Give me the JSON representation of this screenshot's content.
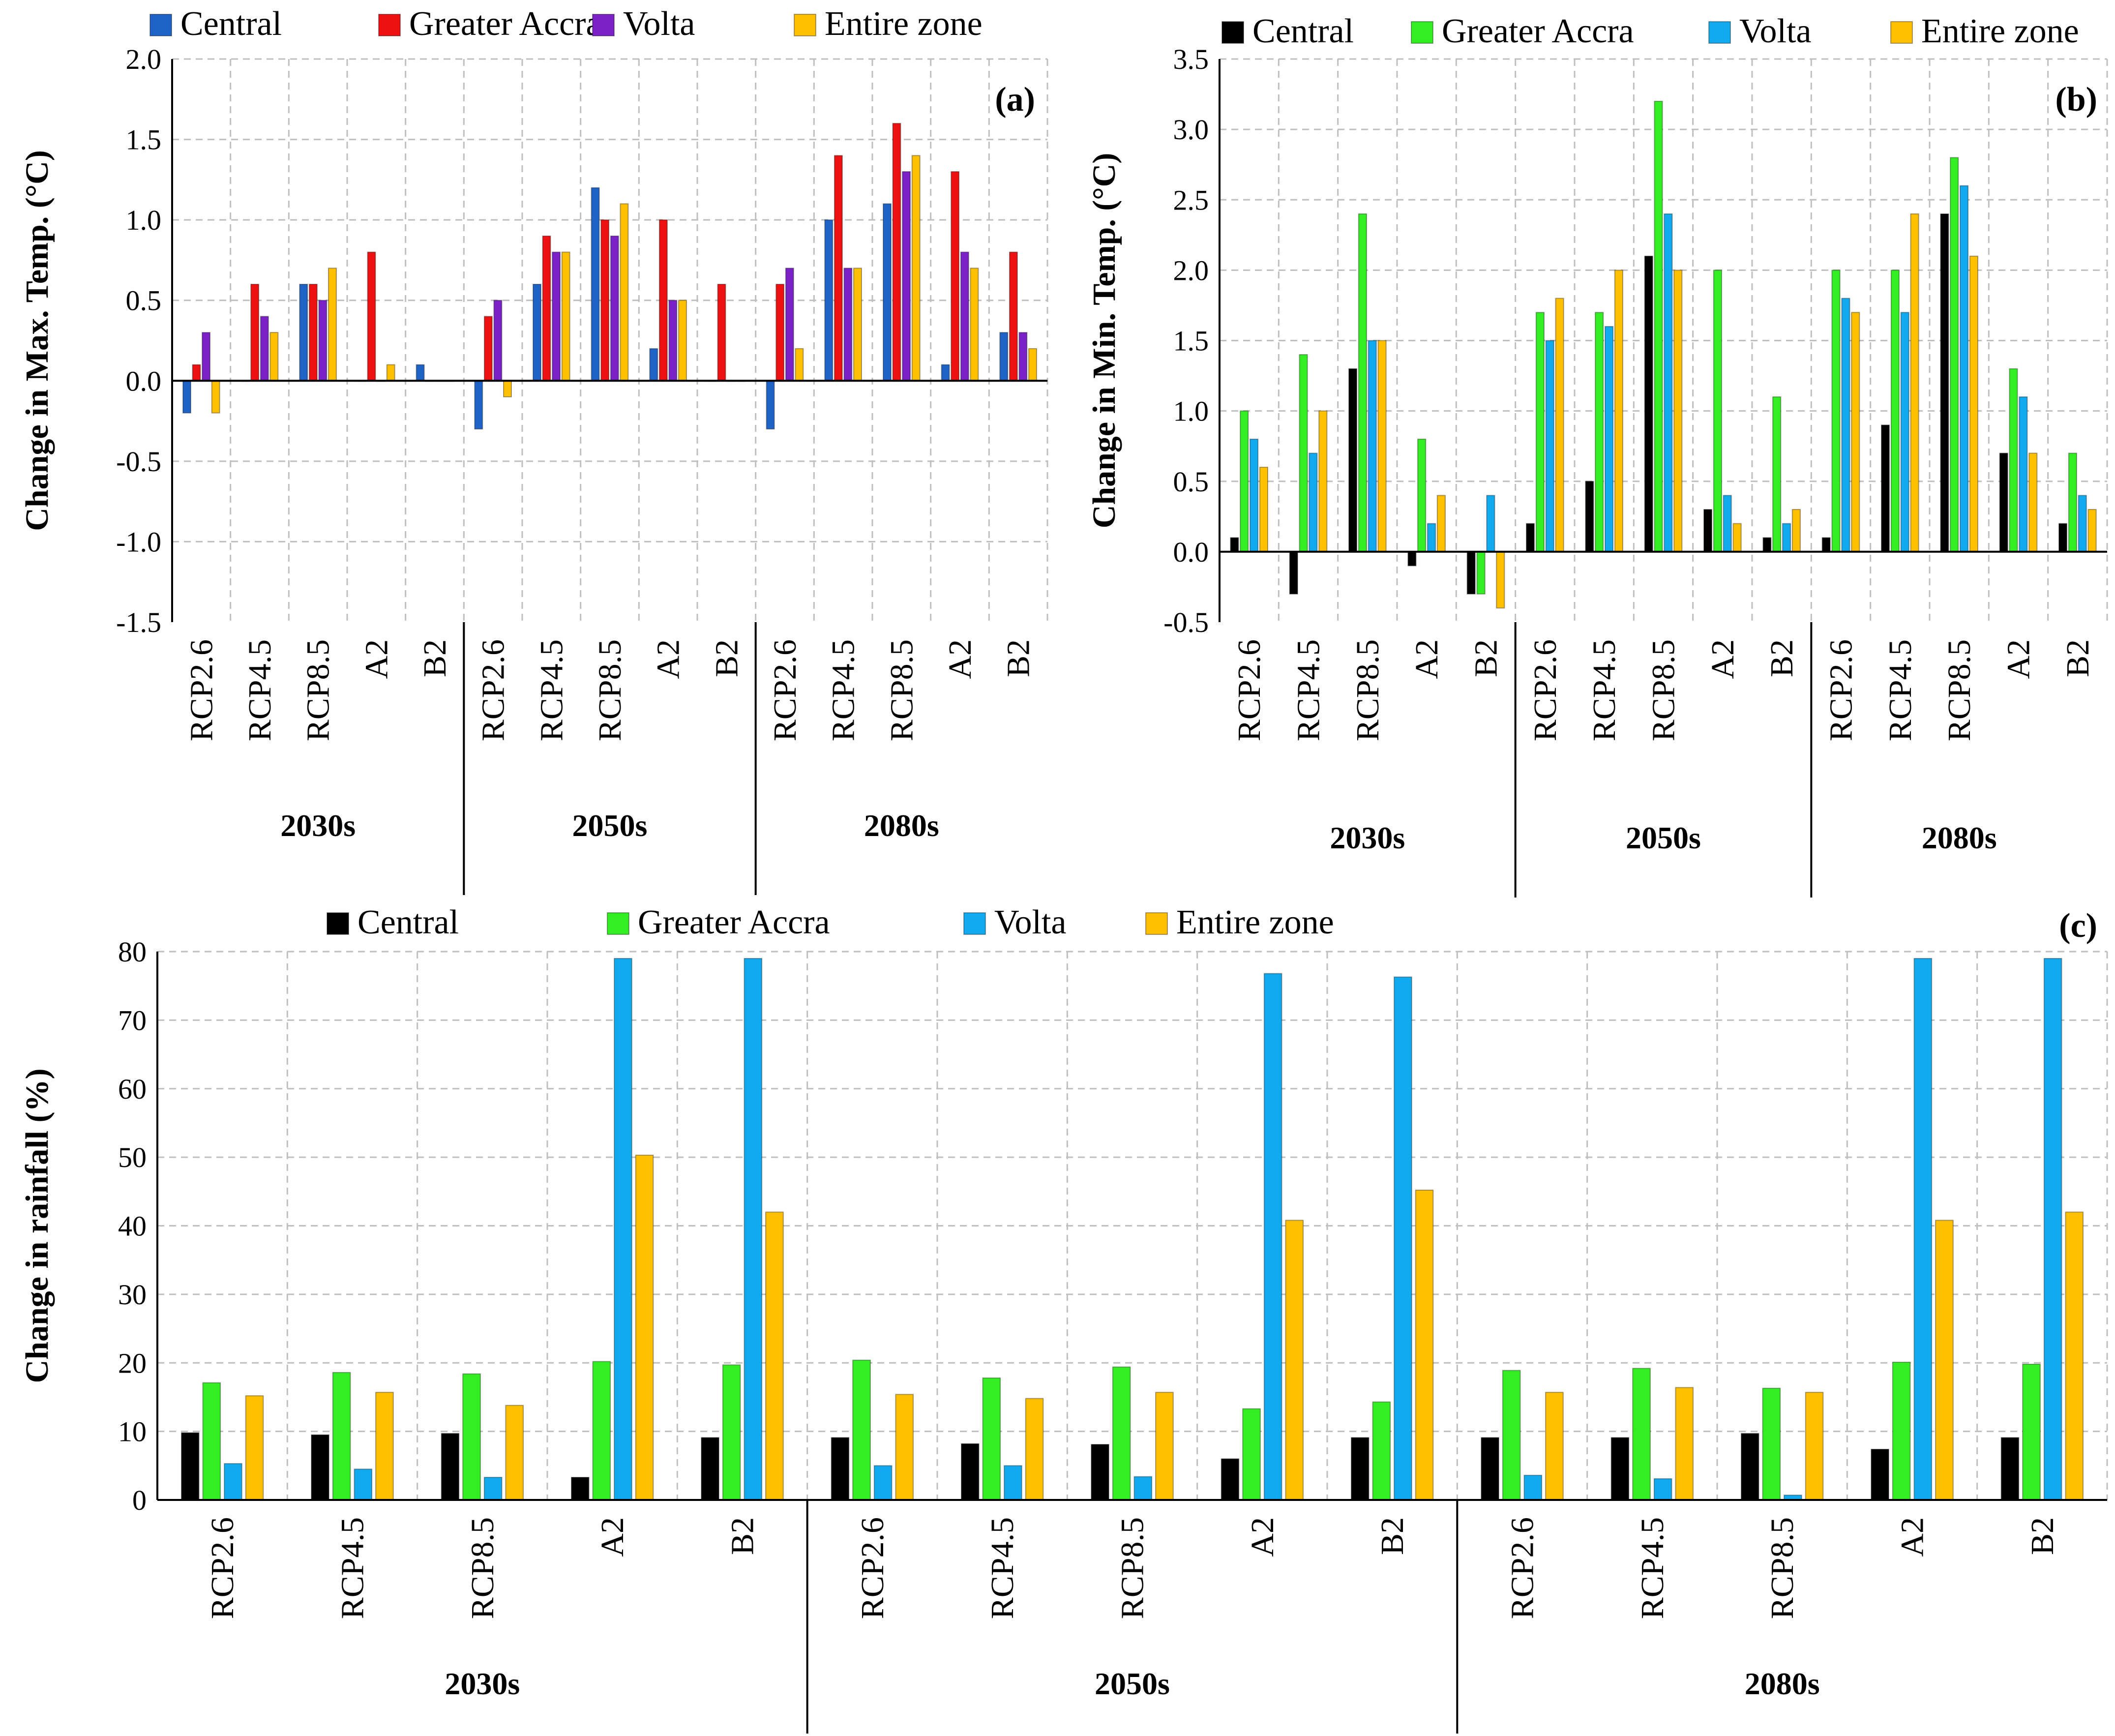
{
  "colors": {
    "Central": "#000000",
    "Greater Accra": "#33ee22",
    "Volta": "#11aaee",
    "Entire zone": "#ffc000"
  },
  "chart_data": [
    {
      "type": "bar",
      "panel": "(a)",
      "ylabel": "Change in Max. Temp. (°C)",
      "ylim": [
        -1.5,
        2.0
      ],
      "ytick_step": 0.5,
      "ytick_decimals": 1,
      "ytick_labels": [
        "-1.5",
        "-1.0",
        "-0.5",
        "0.0",
        "0.5",
        "1.0",
        "1.5",
        "2.0"
      ],
      "grid": true,
      "legend_position": "top",
      "groups": [
        "2030s",
        "2050s",
        "2080s"
      ],
      "scenarios": [
        "RCP2.6",
        "RCP4.5",
        "RCP8.5",
        "A2",
        "B2"
      ],
      "categories": [
        "RCP2.6",
        "RCP4.5",
        "RCP8.5",
        "A2",
        "B2",
        "RCP2.6",
        "RCP4.5",
        "RCP8.5",
        "A2",
        "B2",
        "RCP2.6",
        "RCP4.5",
        "RCP8.5",
        "A2",
        "B2"
      ],
      "series": [
        {
          "name": "Central",
          "color": "#1f63c6",
          "values": [
            -0.2,
            0.0,
            0.6,
            0.0,
            0.1,
            -0.3,
            0.6,
            1.2,
            0.2,
            0.0,
            -0.3,
            1.0,
            1.1,
            0.1,
            0.3
          ]
        },
        {
          "name": "Greater Accra",
          "color": "#ee1111",
          "values": [
            0.1,
            0.6,
            0.6,
            0.8,
            0.0,
            0.4,
            0.9,
            1.0,
            1.0,
            0.6,
            0.6,
            1.4,
            1.6,
            1.3,
            0.8
          ]
        },
        {
          "name": "Volta",
          "color": "#7a22c8",
          "values": [
            0.3,
            0.4,
            0.5,
            0.0,
            0.0,
            0.5,
            0.8,
            0.9,
            0.5,
            0.0,
            0.7,
            0.7,
            1.3,
            0.8,
            0.3
          ]
        },
        {
          "name": "Entire zone",
          "color": "#ffc000",
          "values": [
            -0.2,
            0.3,
            0.7,
            0.1,
            0.0,
            -0.1,
            0.8,
            1.1,
            0.5,
            0.0,
            0.2,
            0.7,
            1.4,
            0.7,
            0.2
          ]
        }
      ]
    },
    {
      "type": "bar",
      "panel": "(b)",
      "ylabel": "Change in Min. Temp.  (°C)",
      "ylim": [
        -0.5,
        3.5
      ],
      "ytick_step": 0.5,
      "ytick_decimals": 1,
      "ytick_labels": [
        "-0.5",
        "0.0",
        "0.5",
        "1.0",
        "1.5",
        "2.0",
        "2.5",
        "3.0",
        "3.5"
      ],
      "grid": true,
      "legend_position": "top",
      "groups": [
        "2030s",
        "2050s",
        "2080s"
      ],
      "scenarios": [
        "RCP2.6",
        "RCP4.5",
        "RCP8.5",
        "A2",
        "B2"
      ],
      "categories": [
        "RCP2.6",
        "RCP4.5",
        "RCP8.5",
        "A2",
        "B2",
        "RCP2.6",
        "RCP4.5",
        "RCP8.5",
        "A2",
        "B2",
        "RCP2.6",
        "RCP4.5",
        "RCP8.5",
        "A2",
        "B2"
      ],
      "series": [
        {
          "name": "Central",
          "color": "#000000",
          "values": [
            0.1,
            -0.3,
            1.3,
            -0.1,
            -0.3,
            0.2,
            0.5,
            2.1,
            0.3,
            0.1,
            0.1,
            0.9,
            2.4,
            0.7,
            0.2
          ]
        },
        {
          "name": "Greater Accra",
          "color": "#33ee22",
          "values": [
            1.0,
            1.4,
            2.4,
            0.8,
            -0.3,
            1.7,
            1.7,
            3.2,
            2.0,
            1.1,
            2.0,
            2.0,
            2.8,
            1.3,
            0.7
          ]
        },
        {
          "name": "Volta",
          "color": "#11aaee",
          "values": [
            0.8,
            0.7,
            1.5,
            0.2,
            0.4,
            1.5,
            1.6,
            2.4,
            0.4,
            0.2,
            1.8,
            1.7,
            2.6,
            1.1,
            0.4
          ]
        },
        {
          "name": "Entire zone",
          "color": "#ffc000",
          "values": [
            0.6,
            1.0,
            1.5,
            0.4,
            -0.4,
            1.8,
            2.0,
            2.0,
            0.2,
            0.3,
            1.7,
            2.4,
            2.1,
            0.7,
            0.3
          ]
        }
      ]
    },
    {
      "type": "bar",
      "panel": "(c)",
      "ylabel": "Change in rainfall  (%)",
      "ylim": [
        0,
        80
      ],
      "ytick_step": 10,
      "ytick_decimals": 0,
      "ytick_labels": [
        "0",
        "10",
        "20",
        "30",
        "40",
        "50",
        "60",
        "70",
        "80"
      ],
      "grid": true,
      "legend_position": "top",
      "groups": [
        "2030s",
        "2050s",
        "2080s"
      ],
      "scenarios": [
        "RCP2.6",
        "RCP4.5",
        "RCP8.5",
        "A2",
        "B2"
      ],
      "categories": [
        "RCP2.6",
        "RCP4.5",
        "RCP8.5",
        "A2",
        "B2",
        "RCP2.6",
        "RCP4.5",
        "RCP8.5",
        "A2",
        "B2",
        "RCP2.6",
        "RCP4.5",
        "RCP8.5",
        "A2",
        "B2"
      ],
      "series": [
        {
          "name": "Central",
          "color": "#000000",
          "values": [
            9.8,
            9.5,
            9.7,
            3.3,
            9.1,
            9.1,
            8.2,
            8.1,
            6.0,
            9.1,
            9.1,
            9.1,
            9.7,
            7.4,
            9.1
          ]
        },
        {
          "name": "Greater Accra",
          "color": "#33ee22",
          "values": [
            17.1,
            18.6,
            18.4,
            20.2,
            19.7,
            20.4,
            17.8,
            19.4,
            13.3,
            14.3,
            18.9,
            19.2,
            16.3,
            20.1,
            19.8
          ]
        },
        {
          "name": "Volta",
          "color": "#11aaee",
          "values": [
            5.3,
            4.5,
            3.3,
            79.0,
            79.0,
            5.0,
            5.0,
            3.4,
            76.8,
            76.3,
            3.6,
            3.1,
            0.7,
            79.0,
            79.0
          ]
        },
        {
          "name": "Entire zone",
          "color": "#ffc000",
          "values": [
            15.2,
            15.7,
            13.8,
            50.3,
            42.0,
            15.4,
            14.8,
            15.7,
            40.8,
            45.2,
            15.7,
            16.4,
            15.7,
            40.8,
            42.0
          ]
        }
      ]
    }
  ]
}
